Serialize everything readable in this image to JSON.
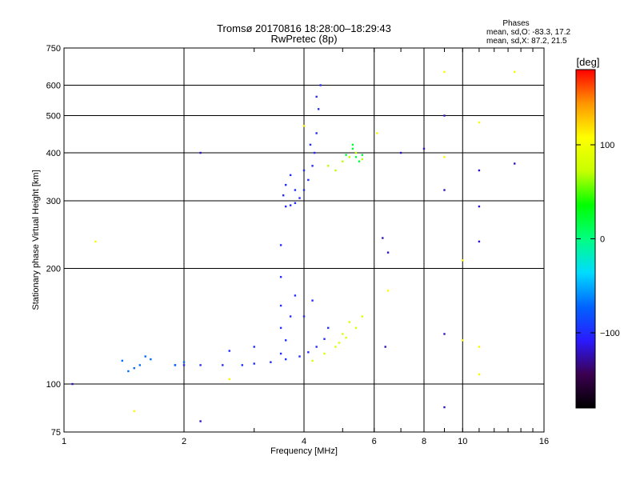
{
  "chart_data": {
    "type": "scatter",
    "title": "Tromsø 20170816 18:28:00–18:29:43",
    "subtitle": "RwPretec (8p)",
    "phases_title": "Phases",
    "phases_stats": [
      "mean, sd,O: -83.3, 17.2",
      "mean, sd,X: 87.2, 21.5"
    ],
    "xlabel": "Frequency [MHz]",
    "ylabel": "Stationary phase Virtual Height [km]",
    "xscale": "log",
    "yscale": "log",
    "xlim": [
      1,
      16
    ],
    "ylim": [
      75,
      750
    ],
    "xticks": [
      1,
      2,
      4,
      6,
      8,
      10,
      16
    ],
    "yticks": [
      75,
      100,
      200,
      300,
      400,
      500,
      600,
      750
    ],
    "grid": true,
    "colorbar": {
      "label": "[deg]",
      "range": [
        -180,
        180
      ],
      "ticks": [
        100,
        0,
        -100
      ],
      "colormap": [
        "#000000",
        "#3b0050",
        "#2a1aff",
        "#0064ff",
        "#00dcff",
        "#00ff80",
        "#00ff00",
        "#c8ff00",
        "#ffff00",
        "#ff9600",
        "#ff0000"
      ]
    },
    "clusters": [
      {
        "name_hint": "F-trace",
        "phase": -100,
        "points": [
          [
            3.6,
            290
          ],
          [
            3.7,
            292
          ],
          [
            3.8,
            296
          ],
          [
            3.9,
            305
          ],
          [
            4.0,
            320
          ],
          [
            4.1,
            340
          ],
          [
            4.2,
            370
          ],
          [
            4.25,
            400
          ],
          [
            4.3,
            450
          ],
          [
            4.35,
            520
          ],
          [
            4.4,
            600
          ],
          [
            3.55,
            310
          ],
          [
            3.6,
            330
          ],
          [
            3.7,
            350
          ],
          [
            3.8,
            320
          ],
          [
            4.0,
            360
          ],
          [
            4.15,
            420
          ],
          [
            4.3,
            560
          ]
        ]
      },
      {
        "name_hint": "E-trace",
        "phase": -100,
        "points": [
          [
            1.9,
            112
          ],
          [
            2.0,
            112
          ],
          [
            2.2,
            112
          ],
          [
            2.5,
            112
          ],
          [
            2.8,
            112
          ],
          [
            3.0,
            113
          ],
          [
            3.3,
            114
          ],
          [
            3.6,
            116
          ],
          [
            3.9,
            118
          ],
          [
            4.1,
            121
          ],
          [
            4.3,
            125
          ],
          [
            4.5,
            131
          ],
          [
            4.6,
            140
          ],
          [
            3.5,
            120
          ],
          [
            3.5,
            140
          ],
          [
            3.5,
            160
          ],
          [
            3.5,
            190
          ],
          [
            3.5,
            230
          ],
          [
            3.6,
            130
          ],
          [
            3.7,
            150
          ],
          [
            3.8,
            170
          ],
          [
            4.0,
            150
          ],
          [
            4.2,
            165
          ],
          [
            3.0,
            125
          ],
          [
            2.6,
            122
          ]
        ]
      },
      {
        "name_hint": "low-trace",
        "phase": -70,
        "points": [
          [
            1.4,
            115
          ],
          [
            1.45,
            108
          ],
          [
            1.5,
            110
          ],
          [
            1.55,
            112
          ],
          [
            1.6,
            118
          ],
          [
            1.65,
            116
          ],
          [
            1.9,
            112
          ],
          [
            2.0,
            114
          ]
        ]
      },
      {
        "name_hint": "X-trace",
        "phase": 85,
        "points": [
          [
            4.2,
            115
          ],
          [
            4.5,
            120
          ],
          [
            4.8,
            125
          ],
          [
            5.1,
            132
          ],
          [
            5.4,
            140
          ],
          [
            5.6,
            150
          ],
          [
            5.2,
            145
          ],
          [
            5.0,
            135
          ],
          [
            4.9,
            128
          ]
        ]
      },
      {
        "name_hint": "F-X",
        "phase": 70,
        "points": [
          [
            4.6,
            370
          ],
          [
            4.8,
            360
          ],
          [
            5.0,
            380
          ],
          [
            5.2,
            390
          ],
          [
            5.4,
            400
          ],
          [
            5.6,
            385
          ]
        ]
      },
      {
        "name_hint": "green-patch",
        "phase": 20,
        "points": [
          [
            5.1,
            395
          ],
          [
            5.3,
            410
          ],
          [
            5.4,
            390
          ],
          [
            5.5,
            380
          ],
          [
            5.6,
            395
          ],
          [
            5.3,
            420
          ]
        ]
      },
      {
        "name_hint": "scatter",
        "phase": -120,
        "points": [
          [
            2.2,
            400
          ],
          [
            2.2,
            80
          ],
          [
            1.05,
            100
          ],
          [
            6.5,
            220
          ],
          [
            6.3,
            240
          ],
          [
            9.0,
            320
          ],
          [
            9.0,
            500
          ],
          [
            9.0,
            135
          ],
          [
            9.0,
            87
          ],
          [
            11.0,
            290
          ],
          [
            11.0,
            235
          ],
          [
            11.0,
            360
          ],
          [
            13.5,
            375
          ],
          [
            8.0,
            410
          ],
          [
            7.0,
            400
          ],
          [
            6.4,
            125
          ]
        ]
      },
      {
        "name_hint": "scatter-warm",
        "phase": 110,
        "points": [
          [
            1.2,
            235
          ],
          [
            1.5,
            85
          ],
          [
            2.6,
            103
          ],
          [
            6.5,
            175
          ],
          [
            9.0,
            650
          ],
          [
            10.0,
            130
          ],
          [
            10.0,
            210
          ],
          [
            11.0,
            125
          ],
          [
            11.0,
            106
          ],
          [
            11.0,
            480
          ],
          [
            13.5,
            650
          ],
          [
            4.0,
            470
          ],
          [
            6.1,
            450
          ],
          [
            9.0,
            390
          ]
        ]
      }
    ]
  }
}
